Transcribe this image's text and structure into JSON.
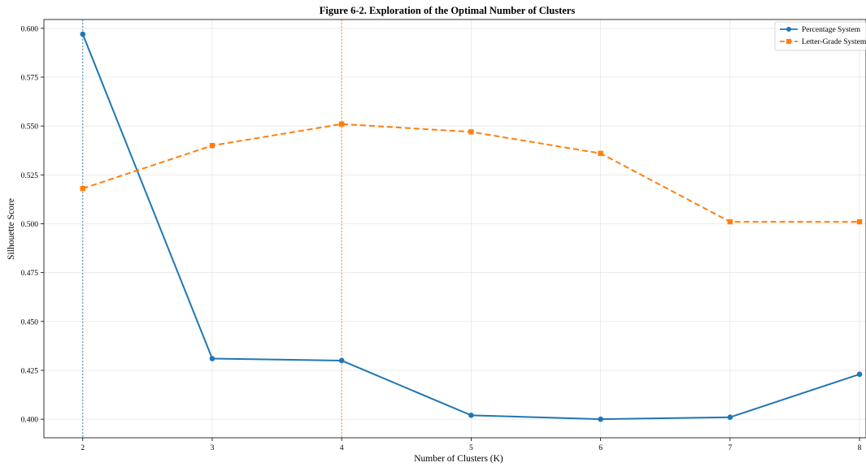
{
  "chart_data": {
    "type": "line",
    "title": "Figure 6-2. Exploration of the Optimal Number of Clusters",
    "xlabel": "Number of Clusters (K)",
    "ylabel": "Silhouette Score",
    "x": [
      2,
      3,
      4,
      5,
      6,
      7,
      8
    ],
    "xlim": [
      1.7,
      8.05
    ],
    "ylim": [
      0.3905,
      0.6045
    ],
    "yticks": [
      "0.400",
      "0.425",
      "0.450",
      "0.475",
      "0.500",
      "0.525",
      "0.550",
      "0.575",
      "0.600"
    ],
    "xticks": [
      "2",
      "3",
      "4",
      "5",
      "6",
      "7",
      "8"
    ],
    "grid": true,
    "legend_position": "top-right",
    "series": [
      {
        "name": "Percentage System",
        "values": [
          0.597,
          0.431,
          0.43,
          0.402,
          0.4,
          0.401,
          0.423
        ],
        "color": "#1f77b4",
        "style": "solid",
        "marker": "circle",
        "optimal_k": 2
      },
      {
        "name": "Letter-Grade System",
        "values": [
          0.518,
          0.54,
          0.551,
          0.547,
          0.536,
          0.501,
          0.501
        ],
        "color": "#ff7f0e",
        "style": "dashed",
        "marker": "square",
        "optimal_k": 4
      }
    ]
  }
}
